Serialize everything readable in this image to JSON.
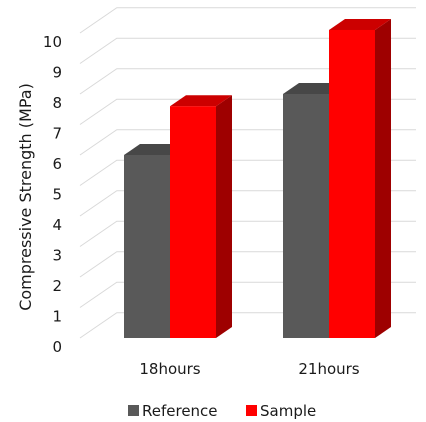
{
  "chart_data": {
    "type": "bar",
    "ylabel": "Compressive Strength (MPa)",
    "xlabel": "",
    "categories": [
      "18hours",
      "21hours"
    ],
    "series": [
      {
        "name": "Reference",
        "values": [
          6,
          8
        ],
        "color": "#595959"
      },
      {
        "name": "Sample",
        "values": [
          7.6,
          10.1
        ],
        "color": "#ff0000"
      }
    ],
    "ylim": [
      0,
      10
    ],
    "yticks": [
      "0",
      "1",
      "2",
      "3",
      "4",
      "5",
      "6",
      "7",
      "8",
      "9",
      "10"
    ],
    "grid": true,
    "legend_position": "bottom",
    "style": "3d-clustered-column"
  }
}
